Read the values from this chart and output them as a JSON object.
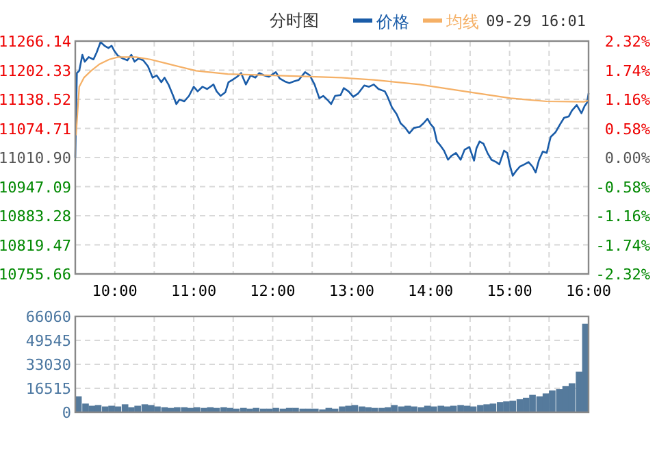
{
  "chart_data": [
    {
      "type": "line",
      "title": "分时图",
      "annotations": [
        "09-29 16:01"
      ],
      "legend": "top",
      "grid": true,
      "xlim": [
        9.5,
        16
      ],
      "xticks": [
        {
          "value": 10,
          "label": "10:00"
        },
        {
          "value": 10.5,
          "label": null
        },
        {
          "value": 11,
          "label": "11:00"
        },
        {
          "value": 11.5,
          "label": null
        },
        {
          "value": 12,
          "label": "12:00"
        },
        {
          "value": 12.5,
          "label": null
        },
        {
          "value": 13,
          "label": "13:00"
        },
        {
          "value": 13.5,
          "label": null
        },
        {
          "value": 14,
          "label": "14:00"
        },
        {
          "value": 14.5,
          "label": null
        },
        {
          "value": 15,
          "label": "15:00"
        },
        {
          "value": 15.5,
          "label": null
        },
        {
          "value": 16,
          "label": "16:00"
        }
      ],
      "ylim": [
        10755.66,
        11266.14
      ],
      "yticks": [
        {
          "value": 11266.14,
          "label": "11266.14"
        },
        {
          "value": 11202.33,
          "label": "11202.33"
        },
        {
          "value": 11138.52,
          "label": "11138.52"
        },
        {
          "value": 11074.71,
          "label": "11074.71"
        },
        {
          "value": 11010.9,
          "label": "11010.90"
        },
        {
          "value": 10947.09,
          "label": "10947.09"
        },
        {
          "value": 10883.28,
          "label": "10883.28"
        },
        {
          "value": 10819.47,
          "label": "10819.47"
        },
        {
          "value": 10755.66,
          "label": "10755.66"
        }
      ],
      "y2lim": [
        -2.32,
        2.32
      ],
      "y2ticks": [
        {
          "value": 2.32,
          "label": "2.32%"
        },
        {
          "value": 1.74,
          "label": "1.74%"
        },
        {
          "value": 1.16,
          "label": "1.16%"
        },
        {
          "value": 0.58,
          "label": "0.58%"
        },
        {
          "value": 0,
          "label": "0.00%"
        },
        {
          "value": -0.58,
          "label": "-0.58%"
        },
        {
          "value": -1.16,
          "label": "-1.16%"
        },
        {
          "value": -1.74,
          "label": "-1.74%"
        },
        {
          "value": -2.32,
          "label": "-2.32%"
        }
      ],
      "series": [
        {
          "name": "价格",
          "color": "#1a5ca8",
          "x": [
            9.5,
            9.52,
            9.55,
            9.59,
            9.62,
            9.67,
            9.73,
            9.77,
            9.82,
            9.87,
            9.92,
            9.96,
            9.99,
            10.04,
            10.1,
            10.16,
            10.21,
            10.25,
            10.3,
            10.36,
            10.42,
            10.48,
            10.53,
            10.59,
            10.63,
            10.68,
            10.74,
            10.78,
            10.82,
            10.88,
            10.94,
            11.0,
            11.05,
            11.11,
            11.17,
            11.25,
            11.29,
            11.34,
            11.4,
            11.44,
            11.49,
            11.55,
            11.6,
            11.66,
            11.72,
            11.78,
            11.83,
            11.89,
            11.95,
            12.04,
            12.09,
            12.15,
            12.21,
            12.27,
            12.33,
            12.41,
            12.47,
            12.53,
            12.59,
            12.64,
            12.7,
            12.74,
            12.79,
            12.86,
            12.9,
            12.96,
            13.02,
            13.08,
            13.16,
            13.22,
            13.28,
            13.34,
            13.42,
            13.45,
            13.51,
            13.57,
            13.62,
            13.68,
            13.73,
            13.79,
            13.86,
            13.91,
            13.96,
            14.0,
            14.04,
            14.08,
            14.12,
            14.17,
            14.22,
            14.26,
            14.32,
            14.38,
            14.43,
            14.49,
            14.55,
            14.58,
            14.62,
            14.67,
            14.72,
            14.77,
            14.83,
            14.87,
            14.93,
            14.97,
            15.0,
            15.04,
            15.08,
            15.13,
            15.19,
            15.24,
            15.29,
            15.33,
            15.37,
            15.42,
            15.47,
            15.52,
            15.58,
            15.64,
            15.69,
            15.75,
            15.79,
            15.85,
            15.91,
            15.95,
            15.98,
            16.0
          ],
          "values": [
            11011,
            11196,
            11201,
            11236,
            11221,
            11231,
            11226,
            11241,
            11264,
            11256,
            11251,
            11256,
            11246,
            11234,
            11228,
            11224,
            11236,
            11221,
            11228,
            11224,
            11211,
            11186,
            11191,
            11176,
            11186,
            11171,
            11146,
            11128,
            11138,
            11134,
            11146,
            11166,
            11156,
            11166,
            11161,
            11171,
            11156,
            11146,
            11154,
            11176,
            11181,
            11188,
            11196,
            11171,
            11191,
            11186,
            11196,
            11191,
            11188,
            11198,
            11184,
            11178,
            11174,
            11178,
            11181,
            11198,
            11191,
            11171,
            11141,
            11146,
            11136,
            11128,
            11146,
            11148,
            11163,
            11156,
            11144,
            11151,
            11169,
            11166,
            11171,
            11161,
            11156,
            11146,
            11121,
            11106,
            11086,
            11076,
            11064,
            11076,
            11078,
            11086,
            11096,
            11084,
            11076,
            11046,
            11038,
            11026,
            11006,
            11014,
            11021,
            11006,
            11028,
            11034,
            11004,
            11031,
            11046,
            11041,
            11021,
            11006,
            11001,
            10996,
            11026,
            11021,
            10996,
            10971,
            10981,
            10991,
            10996,
            11001,
            10991,
            10978,
            11004,
            11024,
            11021,
            11056,
            11066,
            11084,
            11098,
            11101,
            11114,
            11126,
            11108,
            11124,
            11131,
            11151
          ]
        },
        {
          "name": "均线",
          "color": "#f5b066",
          "x": [
            9.51,
            9.55,
            9.61,
            9.7,
            9.81,
            9.93,
            10.04,
            10.27,
            10.45,
            10.68,
            11.03,
            11.43,
            12.01,
            12.87,
            13.28,
            13.86,
            14.43,
            15.01,
            15.47,
            15.94,
            16.0
          ],
          "values": [
            11061,
            11166,
            11186,
            11201,
            11216,
            11226,
            11231,
            11231,
            11226,
            11216,
            11201,
            11194,
            11191,
            11186,
            11181,
            11171,
            11156,
            11141,
            11134,
            11133,
            11136
          ]
        }
      ]
    },
    {
      "type": "bar",
      "grid": true,
      "tick_labels": "y",
      "color": "#557a9c",
      "xlim": [
        9.5,
        16
      ],
      "xticks": [
        {
          "value": 10,
          "label": null
        },
        {
          "value": 10.5,
          "label": null
        },
        {
          "value": 11,
          "label": null
        },
        {
          "value": 11.5,
          "label": null
        },
        {
          "value": 12,
          "label": null
        },
        {
          "value": 12.5,
          "label": null
        },
        {
          "value": 13,
          "label": null
        },
        {
          "value": 13.5,
          "label": null
        },
        {
          "value": 14,
          "label": null
        },
        {
          "value": 14.5,
          "label": null
        },
        {
          "value": 15,
          "label": null
        },
        {
          "value": 15.5,
          "label": null
        }
      ],
      "ylim": [
        0,
        66060
      ],
      "yticks": [
        0,
        16515,
        33030,
        49545,
        66060
      ],
      "x": [
        9.54,
        9.63,
        9.71,
        9.79,
        9.88,
        9.96,
        10.04,
        10.13,
        10.21,
        10.29,
        10.38,
        10.46,
        10.54,
        10.63,
        10.71,
        10.79,
        10.88,
        10.96,
        11.04,
        11.13,
        11.21,
        11.29,
        11.38,
        11.46,
        11.54,
        11.63,
        11.71,
        11.79,
        11.88,
        11.96,
        12.04,
        12.13,
        12.21,
        12.29,
        12.38,
        12.46,
        12.54,
        12.63,
        12.71,
        12.79,
        12.88,
        12.96,
        13.04,
        13.13,
        13.21,
        13.29,
        13.38,
        13.46,
        13.54,
        13.63,
        13.71,
        13.79,
        13.88,
        13.96,
        14.04,
        14.13,
        14.21,
        14.29,
        14.38,
        14.46,
        14.54,
        14.63,
        14.71,
        14.79,
        14.88,
        14.96,
        15.04,
        15.13,
        15.21,
        15.29,
        15.38,
        15.46,
        15.54,
        15.63,
        15.71,
        15.79,
        15.88,
        15.96
      ],
      "values": [
        11000,
        6000,
        4500,
        5000,
        4000,
        4500,
        4000,
        5500,
        3500,
        4500,
        5500,
        5000,
        4000,
        3500,
        3000,
        3500,
        3500,
        3000,
        3500,
        3000,
        3500,
        3000,
        3500,
        3000,
        2500,
        3000,
        2500,
        3000,
        2500,
        2500,
        3000,
        2500,
        3000,
        3000,
        2500,
        2500,
        2500,
        2000,
        3000,
        2500,
        4000,
        4500,
        5000,
        4000,
        3500,
        3000,
        3000,
        3500,
        5000,
        4000,
        4500,
        4000,
        3500,
        4500,
        4000,
        4500,
        4000,
        4500,
        5000,
        4500,
        4000,
        5000,
        5500,
        6000,
        7000,
        7500,
        8000,
        9000,
        10000,
        12000,
        11000,
        13000,
        15000,
        16000,
        18000,
        20000,
        28000,
        61000
      ]
    }
  ]
}
